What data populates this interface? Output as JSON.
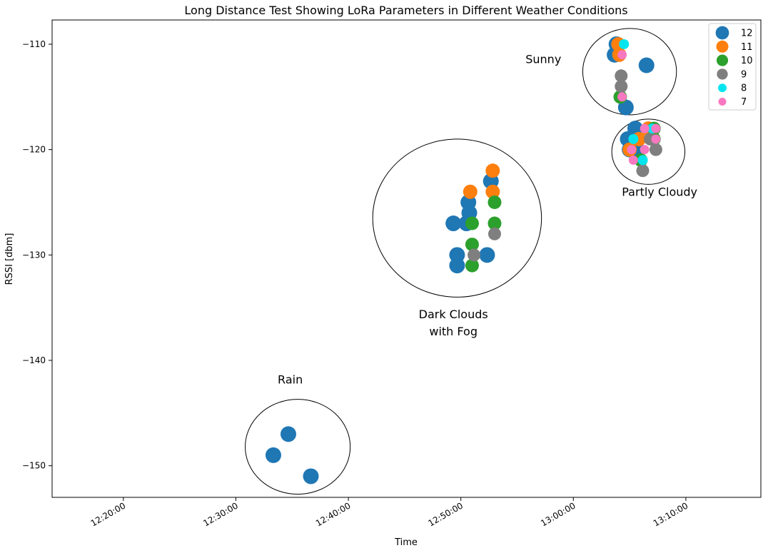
{
  "chart_data": {
    "type": "scatter",
    "title": "Long Distance Test Showing LoRa Parameters in Different Weather Conditions",
    "xlabel": "Time",
    "ylabel": "RSSI [dbm]",
    "xlim": [
      "12:13:40",
      "13:16:40"
    ],
    "ylim": [
      -153.0,
      -107.7
    ],
    "x_ticks": [
      "12:20:00",
      "12:30:00",
      "12:40:00",
      "12:50:00",
      "13:00:00",
      "13:10:00"
    ],
    "y_ticks": [
      -110,
      -120,
      -130,
      -140,
      -150
    ],
    "legend": {
      "placement": "top-right"
    },
    "series": [
      {
        "name": "12",
        "color": "#1f77b4",
        "marker_size": 11,
        "points": [
          {
            "x": "12:34:40",
            "y": -147
          },
          {
            "x": "12:33:20",
            "y": -149
          },
          {
            "x": "12:36:40",
            "y": -151
          },
          {
            "x": "12:50:40",
            "y": -125
          },
          {
            "x": "12:50:45",
            "y": -126
          },
          {
            "x": "12:49:20",
            "y": -127
          },
          {
            "x": "12:50:30",
            "y": -127
          },
          {
            "x": "12:49:40",
            "y": -130
          },
          {
            "x": "12:49:40",
            "y": -131
          },
          {
            "x": "12:52:20",
            "y": -130
          },
          {
            "x": "12:52:40",
            "y": -123
          },
          {
            "x": "13:06:30",
            "y": -112
          },
          {
            "x": "13:03:50",
            "y": -110
          },
          {
            "x": "13:03:40",
            "y": -111
          },
          {
            "x": "13:04:40",
            "y": -116
          },
          {
            "x": "13:05:30",
            "y": -118
          },
          {
            "x": "13:04:50",
            "y": -119
          },
          {
            "x": "13:05:00",
            "y": -120
          },
          {
            "x": "13:05:40",
            "y": -120
          }
        ]
      },
      {
        "name": "11",
        "color": "#ff7f0e",
        "marker_size": 10,
        "points": [
          {
            "x": "12:50:50",
            "y": -124
          },
          {
            "x": "12:52:50",
            "y": -122
          },
          {
            "x": "12:52:50",
            "y": -124
          },
          {
            "x": "13:04:00",
            "y": -110
          },
          {
            "x": "13:04:05",
            "y": -111
          },
          {
            "x": "13:05:50",
            "y": -119
          },
          {
            "x": "13:05:00",
            "y": -120
          },
          {
            "x": "13:06:40",
            "y": -118
          }
        ]
      },
      {
        "name": "10",
        "color": "#2ca02c",
        "marker_size": 9.5,
        "points": [
          {
            "x": "12:51:00",
            "y": -127
          },
          {
            "x": "12:51:00",
            "y": -129
          },
          {
            "x": "12:51:00",
            "y": -131
          },
          {
            "x": "12:53:00",
            "y": -125
          },
          {
            "x": "12:53:00",
            "y": -127
          },
          {
            "x": "13:04:10",
            "y": -115
          },
          {
            "x": "13:07:10",
            "y": -118
          },
          {
            "x": "13:07:10",
            "y": -119
          },
          {
            "x": "13:06:00",
            "y": -121
          }
        ]
      },
      {
        "name": "9",
        "color": "#7f7f7f",
        "marker_size": 9,
        "points": [
          {
            "x": "12:51:10",
            "y": -130
          },
          {
            "x": "12:53:00",
            "y": -128
          },
          {
            "x": "13:04:15",
            "y": -113
          },
          {
            "x": "13:04:15",
            "y": -114
          },
          {
            "x": "13:06:10",
            "y": -122
          },
          {
            "x": "13:07:20",
            "y": -120
          },
          {
            "x": "13:06:50",
            "y": -119
          }
        ]
      },
      {
        "name": "8",
        "color": "#00e5ee",
        "marker_size": 7,
        "points": [
          {
            "x": "13:04:30",
            "y": -110
          },
          {
            "x": "13:05:20",
            "y": -119
          },
          {
            "x": "13:06:10",
            "y": -121
          },
          {
            "x": "13:07:00",
            "y": -118
          }
        ]
      },
      {
        "name": "7",
        "color": "#f778c0",
        "marker_size": 6.5,
        "points": [
          {
            "x": "13:04:20",
            "y": -111
          },
          {
            "x": "13:04:20",
            "y": -115
          },
          {
            "x": "13:06:20",
            "y": -118
          },
          {
            "x": "13:07:20",
            "y": -118
          },
          {
            "x": "13:07:20",
            "y": -119
          },
          {
            "x": "13:05:10",
            "y": -120
          },
          {
            "x": "13:06:20",
            "y": -120
          },
          {
            "x": "13:05:20",
            "y": -121
          }
        ]
      }
    ],
    "annotations": [
      {
        "text": [
          "Sunny"
        ],
        "at": {
          "x": "12:57:20",
          "y": -111.8
        }
      },
      {
        "text": [
          "Partly Cloudy"
        ],
        "at": {
          "x": "13:07:40",
          "y": -124.4
        }
      },
      {
        "text": [
          "Dark Clouds",
          "with Fog"
        ],
        "at": {
          "x": "12:49:20",
          "y": -136.0
        }
      },
      {
        "text": [
          "Rain"
        ],
        "at": {
          "x": "12:34:50",
          "y": -142.2
        }
      }
    ],
    "regions": [
      {
        "label": "Sunny",
        "center": {
          "x": "13:05:00",
          "y": -112.6
        },
        "rx_seconds": 250,
        "ry": 4.1
      },
      {
        "label": "Partly Cloudy",
        "center": {
          "x": "13:06:40",
          "y": -120.2
        },
        "rx_seconds": 195,
        "ry": 3.1
      },
      {
        "label": "Dark Clouds with Fog",
        "center": {
          "x": "12:49:40",
          "y": -126.5
        },
        "rx_seconds": 450,
        "ry": 7.5
      },
      {
        "label": "Rain",
        "center": {
          "x": "12:35:30",
          "y": -148.2
        },
        "rx_seconds": 280,
        "ry": 4.5
      }
    ]
  }
}
